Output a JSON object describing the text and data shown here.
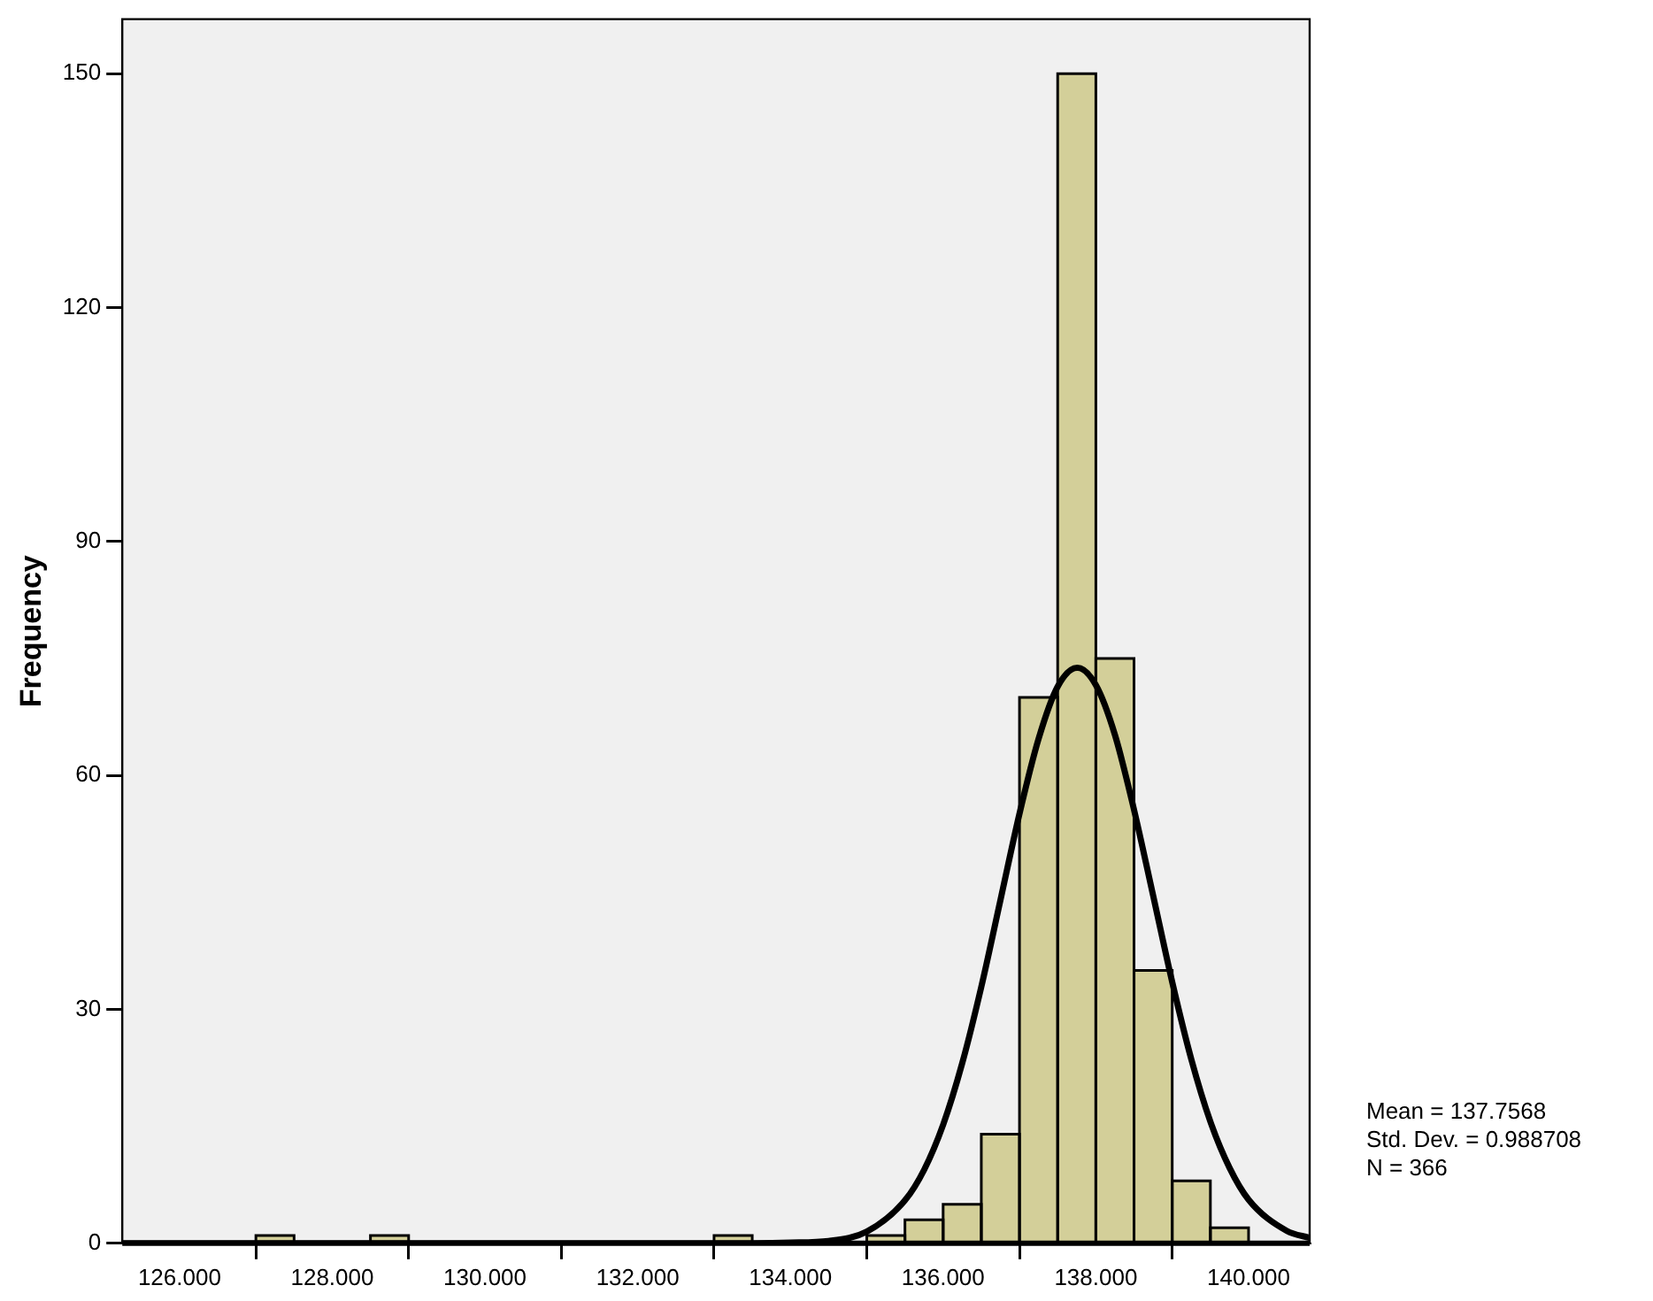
{
  "chart_data": {
    "type": "histogram",
    "ylabel": "Frequency",
    "bins": [
      127.0,
      127.5,
      128.0,
      128.5,
      129.0,
      129.5,
      130.0,
      130.5,
      131.0,
      131.5,
      132.0,
      132.5,
      133.0,
      133.5,
      134.0,
      134.5,
      135.0,
      135.5,
      136.0,
      136.5,
      137.0,
      137.5,
      138.0,
      138.5,
      139.0,
      139.5,
      140.0
    ],
    "series": [
      {
        "color": "#d3cf99",
        "values": [
          1,
          0,
          0,
          1,
          0,
          0,
          0,
          0,
          0,
          0,
          0,
          0,
          1,
          0,
          0,
          0,
          1,
          3,
          5,
          14,
          70,
          150,
          75,
          35,
          8,
          2
        ]
      },
      {
        "type": "line",
        "color": "#000000",
        "x": [
          125.25,
          133.0,
          134.0,
          134.5,
          135.0,
          135.5,
          135.75,
          136.0,
          136.25,
          136.5,
          136.75,
          137.0,
          137.25,
          137.5,
          137.7568,
          138.0,
          138.25,
          138.5,
          138.75,
          139.0,
          139.25,
          139.5,
          139.75,
          140.0,
          140.5,
          140.8
        ],
        "values": [
          0,
          0,
          0.1,
          0.3,
          1.5,
          5.5,
          9.4,
          15.2,
          23.1,
          32.9,
          44.0,
          55.1,
          64.7,
          71.4,
          73.8,
          71.6,
          65.2,
          55.6,
          44.6,
          33.5,
          23.6,
          15.6,
          9.7,
          5.6,
          1.6,
          0.7
        ]
      }
    ],
    "xlim": [
      125.25,
      140.8
    ],
    "xticks": [
      {
        "value": 126,
        "label": "126.000"
      },
      {
        "value": 128,
        "label": "128.000"
      },
      {
        "value": 130,
        "label": "130.000"
      },
      {
        "value": 132,
        "label": "132.000"
      },
      {
        "value": 134,
        "label": "134.000"
      },
      {
        "value": 136,
        "label": "136.000"
      },
      {
        "value": 138,
        "label": "138.000"
      },
      {
        "value": 140,
        "label": "140.000"
      }
    ],
    "ylim": [
      0,
      157
    ],
    "yticks": [
      0,
      30,
      60,
      90,
      120,
      150
    ],
    "grid": false,
    "legend": false,
    "marker": "none",
    "annotations": [
      "Mean = 137.7568",
      "Std. Dev. = 0.988708",
      "N = 366"
    ]
  }
}
